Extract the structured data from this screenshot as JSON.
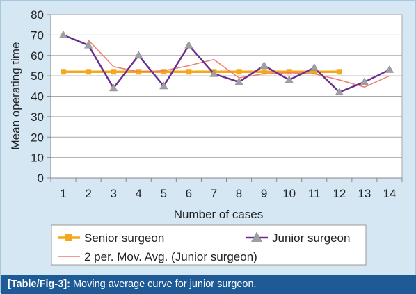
{
  "caption": {
    "label": "[Table/Fig-3]:",
    "text": " Moving average curve for junior surgeon."
  },
  "chart_data": {
    "type": "line",
    "title": "",
    "xlabel": "Number of cases",
    "ylabel": "Mean operating time",
    "x": [
      1,
      2,
      3,
      4,
      5,
      6,
      7,
      8,
      9,
      10,
      11,
      12,
      13,
      14
    ],
    "ylim": [
      0,
      80
    ],
    "yticks": [
      0,
      10,
      20,
      30,
      40,
      50,
      60,
      70,
      80
    ],
    "grid": true,
    "legend_position": "bottom",
    "series": [
      {
        "name": "Senior surgeon",
        "color": "#f5a81c",
        "marker": "square",
        "values": [
          52,
          52,
          52,
          52,
          52,
          52,
          52,
          52,
          52,
          52,
          52,
          52,
          null,
          null
        ]
      },
      {
        "name": "Junior surgeon",
        "color": "#6b2f8f",
        "marker": "triangle",
        "marker_color": "#9f9fa6",
        "values": [
          70,
          65,
          44,
          60,
          45,
          65,
          51,
          47,
          55,
          48,
          54,
          42,
          47,
          53
        ]
      },
      {
        "name": "2 per. Mov. Avg. (Junior surgeon)",
        "color": "#f07a6a",
        "marker": "none",
        "values": [
          null,
          67.5,
          54.5,
          52,
          52.5,
          55,
          58,
          49,
          51,
          51.5,
          51,
          48,
          44.5,
          50
        ]
      }
    ]
  }
}
